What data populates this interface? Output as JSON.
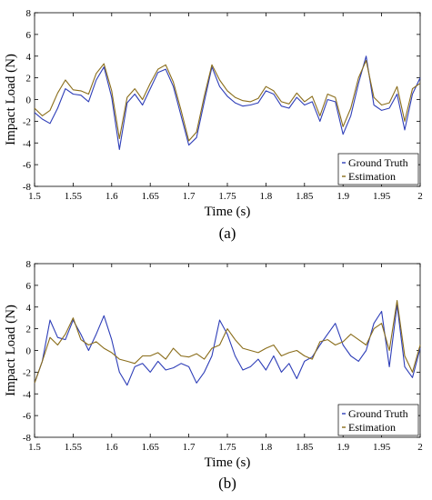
{
  "chart_data": [
    {
      "type": "line",
      "panel_label": "(a)",
      "xlabel": "Time (s)",
      "ylabel": "Impact Load (N)",
      "xlim": [
        1.5,
        2.0
      ],
      "ylim": [
        -8,
        8
      ],
      "xticks": [
        1.5,
        1.55,
        1.6,
        1.65,
        1.7,
        1.75,
        1.8,
        1.85,
        1.9,
        1.95,
        2
      ],
      "xtick_labels": [
        "1.5",
        "1.55",
        "1.6",
        "1.65",
        "1.7",
        "1.75",
        "1.8",
        "1.85",
        "1.9",
        "1.95",
        "2"
      ],
      "yticks": [
        -8,
        -6,
        -4,
        -2,
        0,
        2,
        4,
        6,
        8
      ],
      "ytick_labels": [
        "-8",
        "-6",
        "-4",
        "-2",
        "0",
        "2",
        "4",
        "6",
        "8"
      ],
      "grid": false,
      "legend_position": "bottom-right",
      "series": [
        {
          "name": "Ground Truth",
          "color": "#2e3eb8",
          "x": [
            1.5,
            1.51,
            1.52,
            1.53,
            1.54,
            1.55,
            1.56,
            1.57,
            1.58,
            1.59,
            1.6,
            1.61,
            1.62,
            1.63,
            1.64,
            1.65,
            1.66,
            1.67,
            1.68,
            1.69,
            1.7,
            1.71,
            1.72,
            1.73,
            1.74,
            1.75,
            1.76,
            1.77,
            1.78,
            1.79,
            1.8,
            1.81,
            1.82,
            1.83,
            1.84,
            1.85,
            1.86,
            1.87,
            1.88,
            1.89,
            1.9,
            1.91,
            1.92,
            1.93,
            1.94,
            1.95,
            1.96,
            1.97,
            1.98,
            1.99,
            2.0
          ],
          "y": [
            -1.2,
            -1.8,
            -2.2,
            -0.8,
            1.0,
            0.5,
            0.4,
            -0.2,
            1.8,
            3.0,
            0.2,
            -4.6,
            -0.3,
            0.5,
            -0.5,
            1.0,
            2.5,
            2.8,
            1.2,
            -1.5,
            -4.2,
            -3.5,
            -0.2,
            3.0,
            1.2,
            0.3,
            -0.3,
            -0.6,
            -0.5,
            -0.3,
            0.8,
            0.5,
            -0.6,
            -0.8,
            0.2,
            -0.5,
            -0.2,
            -2.0,
            0.0,
            -0.2,
            -3.2,
            -1.5,
            1.5,
            4.0,
            -0.5,
            -1.0,
            -0.8,
            0.5,
            -2.8,
            0.5,
            2.0
          ]
        },
        {
          "name": "Estimation",
          "color": "#8a6d1a",
          "x": [
            1.5,
            1.51,
            1.52,
            1.53,
            1.54,
            1.55,
            1.56,
            1.57,
            1.58,
            1.59,
            1.6,
            1.61,
            1.62,
            1.63,
            1.64,
            1.65,
            1.66,
            1.67,
            1.68,
            1.69,
            1.7,
            1.71,
            1.72,
            1.73,
            1.74,
            1.75,
            1.76,
            1.77,
            1.78,
            1.79,
            1.8,
            1.81,
            1.82,
            1.83,
            1.84,
            1.85,
            1.86,
            1.87,
            1.88,
            1.89,
            1.9,
            1.91,
            1.92,
            1.93,
            1.94,
            1.95,
            1.96,
            1.97,
            1.98,
            1.99,
            2.0
          ],
          "y": [
            -0.8,
            -1.5,
            -1.0,
            0.6,
            1.8,
            0.9,
            0.8,
            0.5,
            2.4,
            3.3,
            0.8,
            -3.6,
            0.2,
            1.0,
            0.0,
            1.5,
            2.8,
            3.2,
            1.6,
            -1.0,
            -3.8,
            -3.0,
            0.3,
            3.2,
            1.8,
            0.8,
            0.2,
            -0.1,
            -0.2,
            0.1,
            1.2,
            0.8,
            -0.2,
            -0.4,
            0.6,
            -0.2,
            0.3,
            -1.5,
            0.5,
            0.2,
            -2.5,
            -0.8,
            2.0,
            3.6,
            0.2,
            -0.5,
            -0.3,
            1.2,
            -2.0,
            1.0,
            1.5
          ]
        }
      ]
    },
    {
      "type": "line",
      "panel_label": "(b)",
      "xlabel": "Time (s)",
      "ylabel": "Impact Load (N)",
      "xlim": [
        1.5,
        2.0
      ],
      "ylim": [
        -8,
        8
      ],
      "xticks": [
        1.5,
        1.55,
        1.6,
        1.65,
        1.7,
        1.75,
        1.8,
        1.85,
        1.9,
        1.95,
        2
      ],
      "xtick_labels": [
        "1.5",
        "1.55",
        "1.6",
        "1.65",
        "1.7",
        "1.75",
        "1.8",
        "1.85",
        "1.9",
        "1.95",
        "2"
      ],
      "yticks": [
        -8,
        -6,
        -4,
        -2,
        0,
        2,
        4,
        6,
        8
      ],
      "ytick_labels": [
        "-8",
        "-6",
        "-4",
        "-2",
        "0",
        "2",
        "4",
        "6",
        "8"
      ],
      "grid": false,
      "legend_position": "bottom-right",
      "series": [
        {
          "name": "Ground Truth",
          "color": "#2e3eb8",
          "x": [
            1.5,
            1.51,
            1.52,
            1.53,
            1.54,
            1.55,
            1.56,
            1.57,
            1.58,
            1.59,
            1.6,
            1.61,
            1.62,
            1.63,
            1.64,
            1.65,
            1.66,
            1.67,
            1.68,
            1.69,
            1.7,
            1.71,
            1.72,
            1.73,
            1.74,
            1.75,
            1.76,
            1.77,
            1.78,
            1.79,
            1.8,
            1.81,
            1.82,
            1.83,
            1.84,
            1.85,
            1.86,
            1.87,
            1.88,
            1.89,
            1.9,
            1.91,
            1.92,
            1.93,
            1.94,
            1.95,
            1.96,
            1.97,
            1.98,
            1.99,
            2.0
          ],
          "y": [
            -3.0,
            -1.0,
            2.8,
            1.2,
            1.0,
            2.8,
            1.5,
            0.0,
            1.5,
            3.2,
            1.0,
            -2.0,
            -3.2,
            -1.5,
            -1.2,
            -2.0,
            -1.0,
            -1.8,
            -1.6,
            -1.2,
            -1.5,
            -3.0,
            -2.0,
            -0.5,
            2.8,
            1.5,
            -0.5,
            -1.8,
            -1.5,
            -0.8,
            -1.8,
            -0.5,
            -2.0,
            -1.2,
            -2.6,
            -1.0,
            -0.6,
            0.5,
            1.5,
            2.5,
            0.5,
            -0.5,
            -1.0,
            0.0,
            2.5,
            3.6,
            -1.5,
            4.2,
            -1.5,
            -2.5,
            0.2
          ]
        },
        {
          "name": "Estimation",
          "color": "#8a6d1a",
          "x": [
            1.5,
            1.51,
            1.52,
            1.53,
            1.54,
            1.55,
            1.56,
            1.57,
            1.58,
            1.59,
            1.6,
            1.61,
            1.62,
            1.63,
            1.64,
            1.65,
            1.66,
            1.67,
            1.68,
            1.69,
            1.7,
            1.71,
            1.72,
            1.73,
            1.74,
            1.75,
            1.76,
            1.77,
            1.78,
            1.79,
            1.8,
            1.81,
            1.82,
            1.83,
            1.84,
            1.85,
            1.86,
            1.87,
            1.88,
            1.89,
            1.9,
            1.91,
            1.92,
            1.93,
            1.94,
            1.95,
            1.96,
            1.97,
            1.98,
            1.99,
            2.0
          ],
          "y": [
            -3.0,
            -1.0,
            1.2,
            0.5,
            1.5,
            3.0,
            1.0,
            0.5,
            0.8,
            0.2,
            -0.2,
            -0.8,
            -1.0,
            -1.2,
            -0.5,
            -0.5,
            -0.2,
            -0.8,
            0.2,
            -0.5,
            -0.6,
            -0.3,
            -0.8,
            0.2,
            0.5,
            2.0,
            1.0,
            0.2,
            0.0,
            -0.2,
            0.2,
            0.5,
            -0.5,
            -0.2,
            0.0,
            -0.5,
            -0.8,
            0.8,
            1.0,
            0.5,
            0.8,
            1.5,
            1.0,
            0.5,
            2.0,
            2.5,
            0.0,
            4.6,
            -0.5,
            -2.0,
            0.5
          ]
        }
      ]
    }
  ]
}
